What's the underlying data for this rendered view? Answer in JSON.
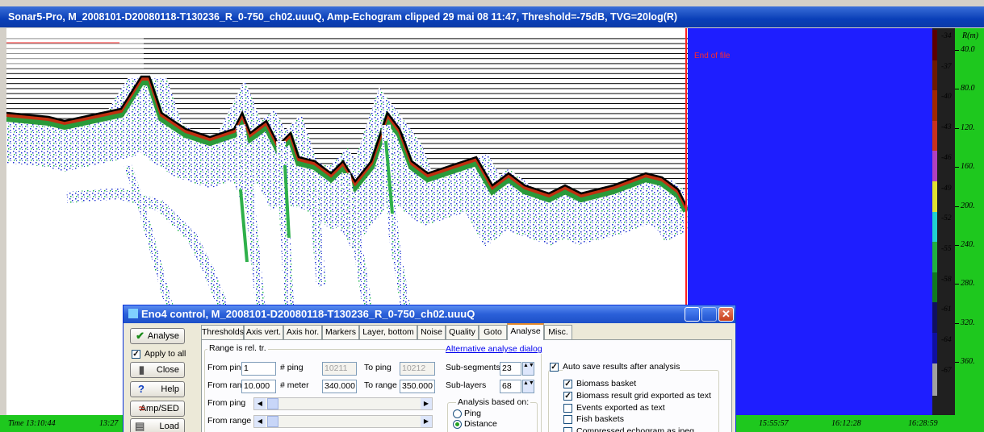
{
  "title_bar": {
    "title": "Sonar5-Pro, M_2008101-D20080118-T130236_R_0-750_ch02.uuuQ, Amp-Echogram clipped 29 mai 08 11:47, Threshold=-75dB, TVG=20log(R)"
  },
  "echogram": {
    "end_label": "End of file"
  },
  "color_scale": {
    "labels": [
      "-34",
      "-37",
      "-40",
      "-43",
      "-46",
      "-49",
      "-52",
      "-55",
      "-58",
      "-61",
      "-64",
      "-67"
    ]
  },
  "range_axis": {
    "title": "R(m)",
    "labels": [
      "40.0",
      "80.0",
      "120.",
      "160.",
      "200.",
      "240.",
      "280.",
      "320.",
      "360."
    ]
  },
  "time_axis": {
    "labels": [
      "Time 13:10:44",
      "13:27",
      "15:55:57",
      "16:12:28",
      "16:28:59"
    ]
  },
  "dialog": {
    "title": "Eno4 control, M_2008101-D20080118-T130236_R_0-750_ch02.uuuQ",
    "buttons": {
      "analyse": "Analyse",
      "close": "Close",
      "help": "Help",
      "amp_sed": "Amp/SED",
      "load": "Load"
    },
    "apply_to_all": {
      "label": "Apply to all",
      "checked": true
    },
    "tabs": [
      "Thresholds",
      "Axis vert.",
      "Axis hor.",
      "Markers",
      "Layer, bottom",
      "Noise",
      "Quality",
      "Goto",
      "Analyse",
      "Misc."
    ],
    "active_tab": 8,
    "range_group": {
      "title": "Range is rel. tr.",
      "link": "Alternative analyse dialog",
      "from_ping": {
        "label": "From ping",
        "value": "1"
      },
      "n_ping": {
        "label": "# ping",
        "value": "10211"
      },
      "to_ping": {
        "label": "To ping",
        "value": "10212"
      },
      "sub_segments": {
        "label": "Sub-segments",
        "value": "23"
      },
      "from_range": {
        "label": "From range",
        "value": "10.000"
      },
      "n_meter": {
        "label": "# meter",
        "value": "340.000"
      },
      "to_range": {
        "label": "To range",
        "value": "350.000"
      },
      "sub_layers": {
        "label": "Sub-layers",
        "value": "68"
      },
      "ping_scroll": {
        "label": "From ping"
      },
      "range_scroll": {
        "label": "From range"
      }
    },
    "analysis_based_on": {
      "title": "Analysis based on:",
      "options": [
        "Ping",
        "Distance"
      ],
      "selected": 1
    },
    "auto_save": {
      "label": "Auto save results after analysis",
      "checked": true,
      "items": [
        {
          "label": "Biomass basket",
          "checked": true
        },
        {
          "label": "Biomass result grid exported as text",
          "checked": true
        },
        {
          "label": "Events exported as text",
          "checked": false
        },
        {
          "label": "Fish baskets",
          "checked": false
        },
        {
          "label": "Compressed echogram as jpeg",
          "checked": false
        }
      ]
    }
  }
}
